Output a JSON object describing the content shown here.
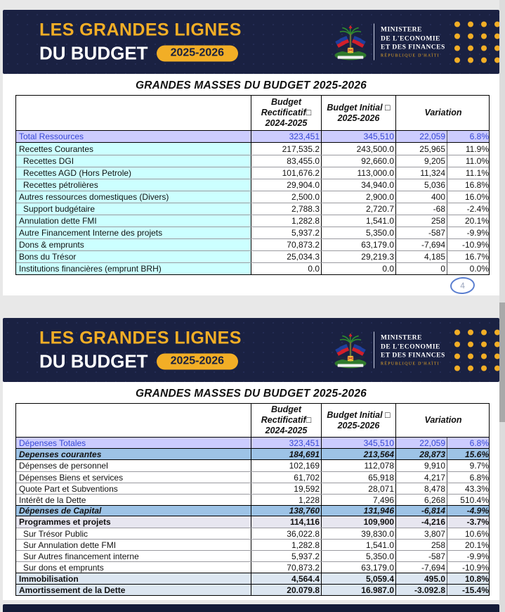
{
  "banner": {
    "title_line1": "LES GRANDES LIGNES",
    "title_line2": "DU BUDGET",
    "badge": "2025-2026",
    "ministry": [
      "MINISTERE",
      "DE L'ECONOMIE",
      "ET DES FINANCES"
    ],
    "ministry_sub": "RÉPUBLIQUE D'HAÏTI",
    "colors": {
      "navy": "#1a2142",
      "gold": "#f2ae26",
      "white": "#ffffff"
    }
  },
  "annotation": {
    "circled_number": "4"
  },
  "colors": {
    "total_row_bg": "#ccccfe",
    "total_row_text": "#3647d6",
    "cyan_label_bg": "#ccffff",
    "steel_row_bg": "#9dc3e6",
    "lavender_row_bg": "#e7e6f0",
    "bluegray_row_bg": "#dce6f1",
    "footer_bar": "#141b38"
  },
  "tables": [
    {
      "title": "GRANDES MASSES DU BUDGET 2025-2026",
      "header": {
        "col0": [],
        "col1": [
          "Budget",
          "Rectificatif□",
          "2024-2025"
        ],
        "col2": [
          "Budget Initial □",
          "2025-2026"
        ],
        "col3": [
          "Variation"
        ]
      },
      "rows": [
        {
          "label": "Total Ressources",
          "v1": "323,451",
          "v2": "345,510",
          "v3": "22,059",
          "v4": "6.8%",
          "style": "total",
          "indent": 0
        },
        {
          "label": "Recettes Courantes",
          "v1": "217,535.2",
          "v2": "243,500.0",
          "v3": "25,965",
          "v4": "11.9%",
          "style": "cyan",
          "indent": 0
        },
        {
          "label": "Recettes DGI",
          "v1": "83,455.0",
          "v2": "92,660.0",
          "v3": "9,205",
          "v4": "11.0%",
          "style": "cyan",
          "indent": 1
        },
        {
          "label": "Recettes AGD (Hors Petrole)",
          "v1": "101,676.2",
          "v2": "113,000.0",
          "v3": "11,324",
          "v4": "11.1%",
          "style": "cyan",
          "indent": 1
        },
        {
          "label": "Recettes pétrolières",
          "v1": "29,904.0",
          "v2": "34,940.0",
          "v3": "5,036",
          "v4": "16.8%",
          "style": "cyan",
          "indent": 1
        },
        {
          "label": "Autres ressources domestiques (Divers)",
          "v1": "2,500.0",
          "v2": "2,900.0",
          "v3": "400",
          "v4": "16.0%",
          "style": "cyan",
          "indent": 0
        },
        {
          "label": "Support budgétaire",
          "v1": "2,788.3",
          "v2": "2,720.7",
          "v3": "-68",
          "v4": "-2.4%",
          "style": "cyan",
          "indent": 1
        },
        {
          "label": "Annulation dette FMI",
          "v1": "1,282.8",
          "v2": "1,541.0",
          "v3": "258",
          "v4": "20.1%",
          "style": "cyan",
          "indent": 0
        },
        {
          "label": "Autre Financement Interne des projets",
          "v1": "5,937.2",
          "v2": "5,350.0",
          "v3": "-587",
          "v4": "-9.9%",
          "style": "cyan",
          "indent": 0
        },
        {
          "label": "Dons & emprunts",
          "v1": "70,873.2",
          "v2": "63,179.0",
          "v3": "-7,694",
          "v4": "-10.9%",
          "style": "cyan",
          "indent": 0
        },
        {
          "label": "Bons du Trésor",
          "v1": "25,034.3",
          "v2": "29,219.3",
          "v3": "4,185",
          "v4": "16.7%",
          "style": "cyan",
          "indent": 0
        },
        {
          "label": "Institutions financières (emprunt BRH)",
          "v1": "0.0",
          "v2": "0.0",
          "v3": "0",
          "v4": "0.0%",
          "style": "cyan",
          "indent": 0
        }
      ]
    },
    {
      "title": "GRANDES MASSES DU BUDGET 2025-2026",
      "header": {
        "col0": [],
        "col1": [
          "Budget",
          "Rectificatif□",
          "2024-2025"
        ],
        "col2": [
          "Budget Initial □",
          "2025-2026"
        ],
        "col3": [
          "Variation"
        ]
      },
      "rows": [
        {
          "label": "Dépenses Totales",
          "v1": "323,451",
          "v2": "345,510",
          "v3": "22,059",
          "v4": "6.8%",
          "style": "total",
          "indent": 0
        },
        {
          "label": "Depenses courantes",
          "v1": "184,691",
          "v2": "213,564",
          "v3": "28,873",
          "v4": "15.6%",
          "style": "steel",
          "indent": 0
        },
        {
          "label": "Dépenses de personnel",
          "v1": "102,169",
          "v2": "112,078",
          "v3": "9,910",
          "v4": "9.7%",
          "style": "plain",
          "indent": 0
        },
        {
          "label": "Dépenses Biens et services",
          "v1": "61,702",
          "v2": "65,918",
          "v3": "4,217",
          "v4": "6.8%",
          "style": "plain",
          "indent": 0
        },
        {
          "label": "Quote Part  et Subventions",
          "v1": "19,592",
          "v2": "28,071",
          "v3": "8,478",
          "v4": "43.3%",
          "style": "plain",
          "indent": 0
        },
        {
          "label": "Intérêt de la Dette",
          "v1": "1,228",
          "v2": "7,496",
          "v3": "6,268",
          "v4": "510.4%",
          "style": "plain",
          "indent": 0
        },
        {
          "label": "Dépenses de Capital",
          "v1": "138,760",
          "v2": "131,946",
          "v3": "-6,814",
          "v4": "-4.9%",
          "style": "steel",
          "indent": 0
        },
        {
          "label": "Programmes et projets",
          "v1": "114,116",
          "v2": "109,900",
          "v3": "-4,216",
          "v4": "-3.7%",
          "style": "lavender",
          "indent": 0
        },
        {
          "label": "Sur Trésor Public",
          "v1": "36,022.8",
          "v2": "39,830.0",
          "v3": "3,807",
          "v4": "10.6%",
          "style": "plain",
          "indent": 1
        },
        {
          "label": "Sur Annulation dette FMI",
          "v1": "1,282.8",
          "v2": "1,541.0",
          "v3": "258",
          "v4": "20.1%",
          "style": "plain",
          "indent": 1
        },
        {
          "label": "Sur Autres financement interne",
          "v1": "5,937.2",
          "v2": "5,350.0",
          "v3": "-587",
          "v4": "-9.9%",
          "style": "plain",
          "indent": 1
        },
        {
          "label": "Sur dons et emprunts",
          "v1": "70,873.2",
          "v2": "63,179.0",
          "v3": "-7,694",
          "v4": "-10.9%",
          "style": "plain",
          "indent": 1
        },
        {
          "label": "Immobilisation",
          "v1": "4,564.4",
          "v2": "5,059.4",
          "v3": "495.0",
          "v4": "10.8%",
          "style": "bluegray",
          "indent": 0
        },
        {
          "label": "Amortissement de la Dette",
          "v1": "20.079.8",
          "v2": "16.987.0",
          "v3": "-3.092.8",
          "v4": "-15.4%",
          "style": "bluegray",
          "indent": 0
        }
      ]
    }
  ]
}
